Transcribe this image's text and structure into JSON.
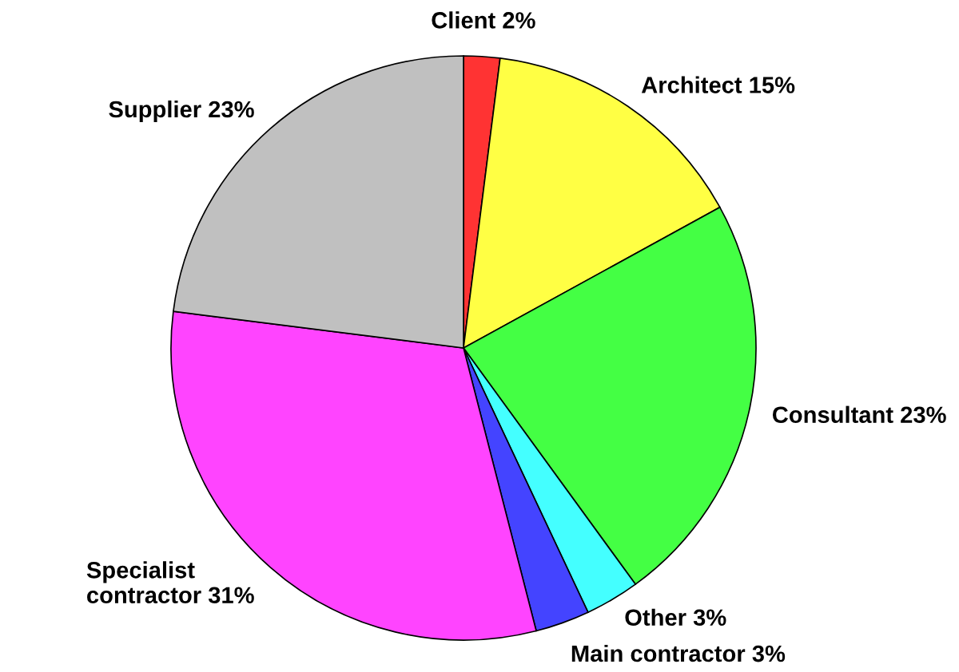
{
  "chart_data": {
    "type": "pie",
    "categories": [
      "Client",
      "Architect",
      "Consultant",
      "Other",
      "Main contractor",
      "Specialist\ncontractor",
      "Supplier"
    ],
    "values": [
      2,
      15,
      23,
      3,
      3,
      31,
      23
    ],
    "value_labels": [
      "2%",
      "15%",
      "23%",
      "3%",
      "3%",
      "31%",
      "23%"
    ],
    "colors": [
      "#ff3333",
      "#ffff44",
      "#44ff44",
      "#44ffff",
      "#4444ff",
      "#ff44ff",
      "#c0c0c0"
    ],
    "legend": false
  }
}
